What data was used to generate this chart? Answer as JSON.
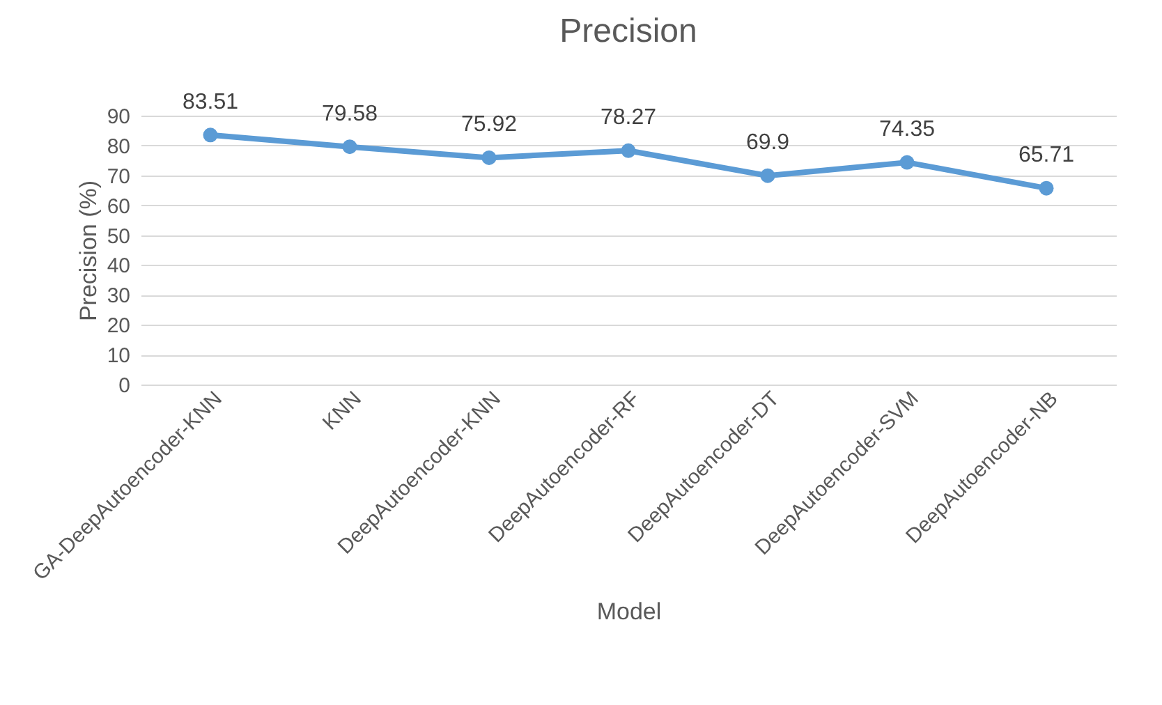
{
  "chart_data": {
    "type": "line",
    "title": "Precision",
    "xlabel": "Model",
    "ylabel": "Precision (%)",
    "categories": [
      "GA-DeepAutoencoder-KNN",
      "KNN",
      "DeepAutoencoder-KNN",
      "DeepAutoencoder-RF",
      "DeepAutoencoder-DT",
      "DeepAutoencoder-SVM",
      "DeepAutoencoder-NB"
    ],
    "series": [
      {
        "color": "#5b9bd5",
        "values": [
          83.51,
          79.58,
          75.92,
          78.27,
          69.9,
          74.35,
          65.71
        ]
      }
    ],
    "ylim": [
      0,
      90
    ],
    "yticks": [
      0,
      10,
      20,
      30,
      40,
      50,
      60,
      70,
      80,
      90
    ],
    "grid": "y",
    "data_labels": true,
    "marker": "circle",
    "line_style": "solid",
    "legend": false
  }
}
